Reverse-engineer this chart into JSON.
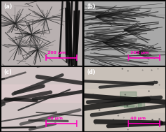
{
  "panels": [
    {
      "label": "(a)",
      "scale_text": "200 μm"
    },
    {
      "label": "(b)",
      "scale_text": "200 μm"
    },
    {
      "label": "(c)",
      "scale_text": "40 μm"
    },
    {
      "label": "(d)",
      "scale_text": "40 μm"
    }
  ],
  "bg_a": "#b8b0b0",
  "bg_b": "#a8a8a8",
  "bg_c": "#d0c4c4",
  "bg_d": "#c8c0b8",
  "magenta": "#ff00bb",
  "label_color": "#ffffff"
}
